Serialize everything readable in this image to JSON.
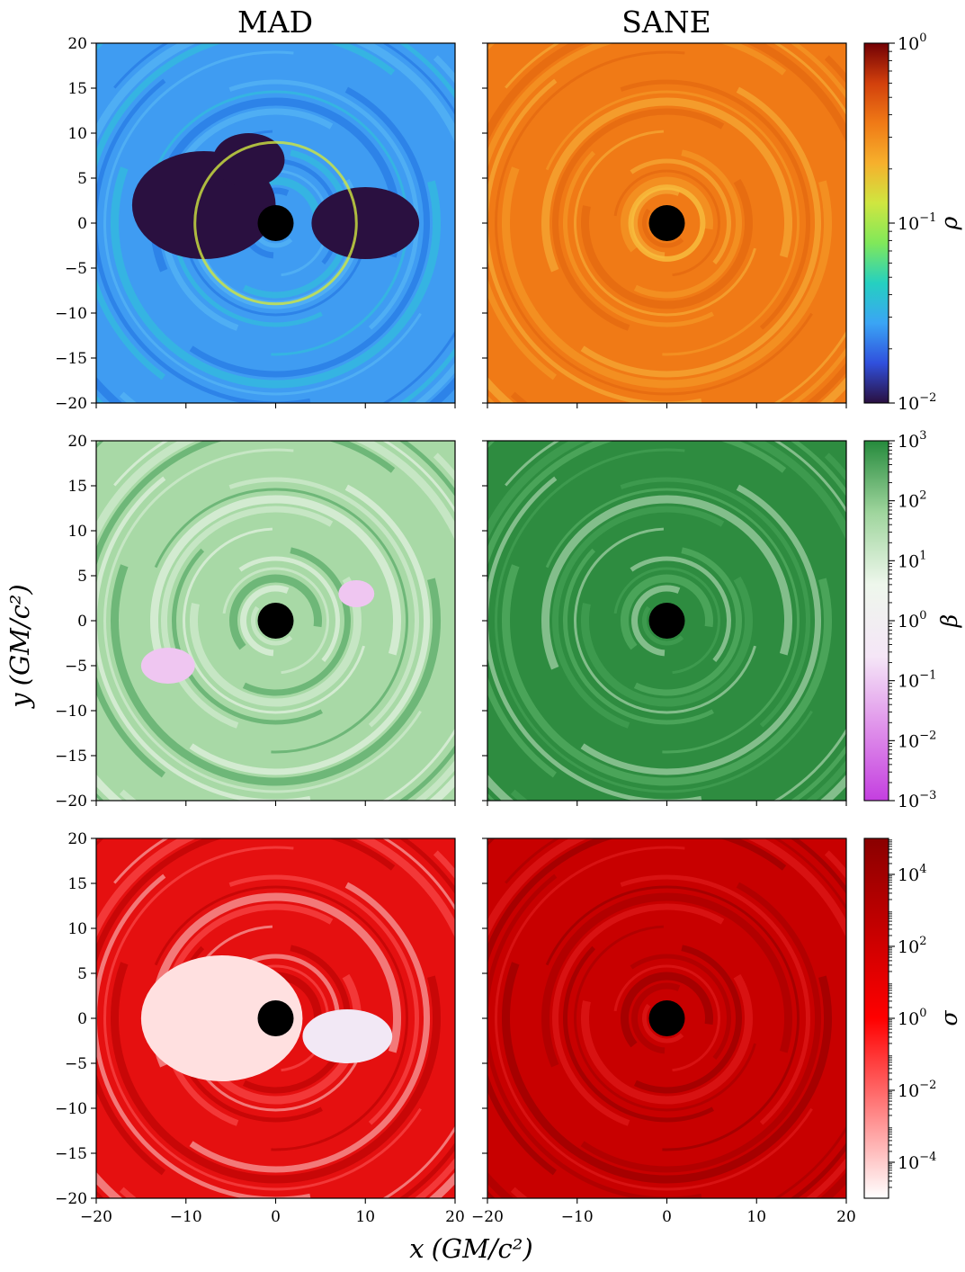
{
  "chart_data": [
    {
      "type": "heatmap",
      "title": "MAD",
      "colorbar_label": "ρ",
      "xlim": [
        -20,
        20
      ],
      "ylim": [
        -20,
        20
      ],
      "xticks": [
        -20,
        -10,
        0,
        10,
        20
      ],
      "yticks": [
        -20,
        -15,
        -10,
        -5,
        0,
        5,
        10,
        15,
        20
      ],
      "ytick_labels": [
        "−20",
        "−15",
        "−10",
        "−5",
        "0",
        "5",
        "10",
        "15",
        "20"
      ],
      "black_hole": {
        "x": 0,
        "y": 0
      }
    },
    {
      "type": "heatmap",
      "title": "SANE",
      "colorbar_label": "ρ",
      "xlim": [
        -20,
        20
      ],
      "ylim": [
        -20,
        20
      ],
      "xticks": [
        -20,
        -10,
        0,
        10,
        20
      ],
      "yticks": [
        -20,
        -15,
        -10,
        -5,
        0,
        5,
        10,
        15,
        20
      ],
      "black_hole": {
        "x": 0,
        "y": 0
      }
    },
    {
      "type": "heatmap",
      "colorbar_label": "β",
      "xlim": [
        -20,
        20
      ],
      "ylim": [
        -20,
        20
      ],
      "yticks": [
        -20,
        -15,
        -10,
        -5,
        0,
        5,
        10,
        15,
        20
      ],
      "ytick_labels": [
        "−20",
        "−15",
        "−10",
        "−5",
        "0",
        "5",
        "10",
        "15",
        "20"
      ],
      "black_hole": {
        "x": 0,
        "y": 0
      }
    },
    {
      "type": "heatmap",
      "colorbar_label": "β",
      "xlim": [
        -20,
        20
      ],
      "ylim": [
        -20,
        20
      ],
      "black_hole": {
        "x": 0,
        "y": 0
      }
    },
    {
      "type": "heatmap",
      "colorbar_label": "σ",
      "xlim": [
        -20,
        20
      ],
      "ylim": [
        -20,
        20
      ],
      "xticks": [
        -20,
        -10,
        0,
        10,
        20
      ],
      "xtick_labels": [
        "−20",
        "−10",
        "0",
        "10",
        "20"
      ],
      "yticks": [
        -20,
        -15,
        -10,
        -5,
        0,
        5,
        10,
        15,
        20
      ],
      "ytick_labels": [
        "−20",
        "−15",
        "−10",
        "−5",
        "0",
        "5",
        "10",
        "15",
        "20"
      ],
      "black_hole": {
        "x": 0,
        "y": 0
      }
    },
    {
      "type": "heatmap",
      "colorbar_label": "σ",
      "xlim": [
        -20,
        20
      ],
      "ylim": [
        -20,
        20
      ],
      "xticks": [
        -20,
        -10,
        0,
        10,
        20
      ],
      "xtick_labels": [
        "−20",
        "−10",
        "0",
        "10",
        "20"
      ],
      "black_hole": {
        "x": 0,
        "y": 0
      }
    }
  ],
  "figure": {
    "columns": [
      "MAD",
      "SANE"
    ],
    "xlabel_main": "x",
    "xlabel_units": "(GM/c²)",
    "ylabel_main": "y",
    "ylabel_units": "(GM/c²)"
  },
  "colorbars": [
    {
      "symbol": "ρ",
      "scale": "log",
      "range": [
        -2,
        0
      ],
      "ticks": [
        {
          "base": "10",
          "exp": "0",
          "v": 0
        },
        {
          "base": "10",
          "exp": "−1",
          "v": -1
        },
        {
          "base": "10",
          "exp": "−2",
          "v": -2
        }
      ],
      "colors": [
        "#2a1040",
        "#3050dd",
        "#3aa5f5",
        "#25d0c0",
        "#80e85a",
        "#cfe640",
        "#f6b02c",
        "#f07a16",
        "#d2400c",
        "#720004"
      ]
    },
    {
      "symbol": "β",
      "scale": "log",
      "range": [
        -3,
        3
      ],
      "ticks": [
        {
          "base": "10",
          "exp": "3",
          "v": 3
        },
        {
          "base": "10",
          "exp": "2",
          "v": 2
        },
        {
          "base": "10",
          "exp": "1",
          "v": 1
        },
        {
          "base": "10",
          "exp": "0",
          "v": 0
        },
        {
          "base": "10",
          "exp": "−1",
          "v": -1
        },
        {
          "base": "10",
          "exp": "−2",
          "v": -2
        },
        {
          "base": "10",
          "exp": "−3",
          "v": -3
        }
      ],
      "colors": [
        "#c43fe0",
        "#df90ea",
        "#f5e6f7",
        "#eef7ec",
        "#9fd59d",
        "#258a3c"
      ]
    },
    {
      "symbol": "σ",
      "scale": "log",
      "range": [
        -5,
        5
      ],
      "ticks": [
        {
          "base": "10",
          "exp": "4",
          "v": 4
        },
        {
          "base": "10",
          "exp": "2",
          "v": 2
        },
        {
          "base": "10",
          "exp": "0",
          "v": 0
        },
        {
          "base": "10",
          "exp": "−2",
          "v": -2
        },
        {
          "base": "10",
          "exp": "−4",
          "v": -4
        }
      ],
      "colors": [
        "#ffffff",
        "#ff0000",
        "#8a0000"
      ]
    }
  ]
}
